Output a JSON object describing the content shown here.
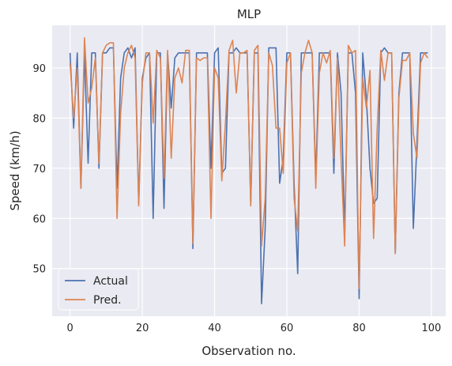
{
  "chart_data": {
    "type": "line",
    "title": "MLP",
    "xlabel": "Observation no.",
    "ylabel": "Speed (km/h)",
    "xlim": [
      -4.95,
      103.95
    ],
    "ylim": [
      40.5,
      98.5
    ],
    "xticks": [
      0,
      20,
      40,
      60,
      80,
      100
    ],
    "yticks": [
      50,
      60,
      70,
      80,
      90
    ],
    "grid": true,
    "legend_position": "lower-left",
    "background": "#eaeaf2",
    "grid_color": "#ffffff",
    "x": [
      0,
      1,
      2,
      3,
      4,
      5,
      6,
      7,
      8,
      9,
      10,
      11,
      12,
      13,
      14,
      15,
      16,
      17,
      18,
      19,
      20,
      21,
      22,
      23,
      24,
      25,
      26,
      27,
      28,
      29,
      30,
      31,
      32,
      33,
      34,
      35,
      36,
      37,
      38,
      39,
      40,
      41,
      42,
      43,
      44,
      45,
      46,
      47,
      48,
      49,
      50,
      51,
      52,
      53,
      54,
      55,
      56,
      57,
      58,
      59,
      60,
      61,
      62,
      63,
      64,
      65,
      66,
      67,
      68,
      69,
      70,
      71,
      72,
      73,
      74,
      75,
      76,
      77,
      78,
      79,
      80,
      81,
      82,
      83,
      84,
      85,
      86,
      87,
      88,
      89,
      90,
      91,
      92,
      93,
      94,
      95,
      96,
      97,
      98,
      99
    ],
    "series": [
      {
        "name": "Actual",
        "color": "#4c72b0",
        "values": [
          93,
          78,
          93,
          66,
          93,
          71,
          93,
          93,
          70,
          93,
          93,
          94,
          94,
          66,
          88,
          93,
          94,
          92,
          94,
          63,
          88,
          92,
          93,
          60,
          93,
          93,
          62,
          93,
          82,
          92,
          93,
          93,
          93,
          93,
          54,
          93,
          93,
          93,
          93,
          70,
          93,
          94,
          69,
          70,
          93,
          93,
          94,
          93,
          93,
          93,
          63,
          93,
          93,
          43,
          58,
          94,
          94,
          94,
          67,
          72,
          93,
          93,
          67,
          49,
          93,
          93,
          93,
          93,
          68,
          93,
          93,
          93,
          93,
          69,
          93,
          85,
          57,
          93,
          93,
          85,
          44,
          93,
          84,
          70,
          63,
          64,
          93,
          94,
          93,
          93,
          53,
          85,
          93,
          93,
          93,
          58,
          75,
          93,
          93,
          93
        ]
      },
      {
        "name": "Pred.",
        "color": "#dd8452",
        "values": [
          91,
          80,
          90,
          66,
          96,
          83,
          86,
          92,
          71,
          93,
          94.5,
          95,
          95,
          60,
          81,
          90,
          93,
          94.5,
          92,
          62.5,
          87,
          93,
          93,
          79,
          93.5,
          92,
          68,
          93.5,
          72,
          88,
          90,
          87,
          93.5,
          93.5,
          55,
          92,
          91.5,
          92,
          92,
          60,
          90,
          88,
          67.5,
          79,
          93.5,
          95.5,
          85,
          93,
          93,
          93.5,
          62.5,
          93.5,
          94.5,
          54.5,
          64,
          93,
          90.5,
          78,
          78,
          69,
          91,
          93,
          64,
          57.5,
          89,
          93,
          95.5,
          93,
          66,
          89,
          93,
          91,
          93.5,
          72,
          92,
          72,
          54.5,
          94.5,
          93,
          93.5,
          46,
          88,
          82,
          89.5,
          56,
          78,
          93.5,
          87.5,
          93,
          93,
          53,
          84,
          91.5,
          91.5,
          93,
          77,
          72,
          91,
          93,
          92
        ]
      }
    ]
  }
}
